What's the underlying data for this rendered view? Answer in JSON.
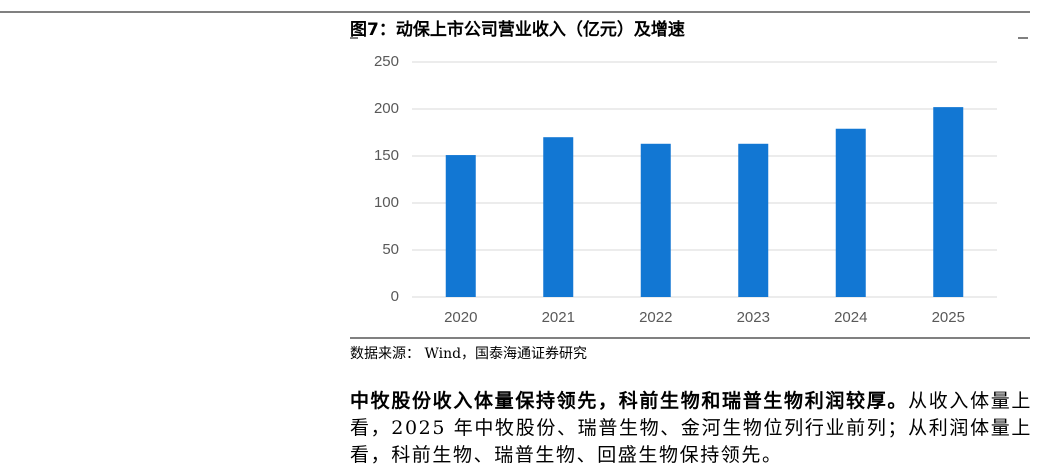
{
  "figure_title": "图7：动保上市公司营业收入（亿元）及增速",
  "chart_data": {
    "type": "bar",
    "categories": [
      "2020",
      "2021",
      "2022",
      "2023",
      "2024",
      "2025"
    ],
    "values": [
      151,
      170,
      163,
      163,
      179,
      202
    ],
    "color": "#1277d3",
    "ylim": [
      0,
      250
    ],
    "yticks": [
      0,
      50,
      100,
      150,
      200,
      250
    ],
    "grid": true
  },
  "source": "数据来源： Wind，国泰海通证券研究",
  "paragraph": {
    "bold": "中牧股份收入体量保持领先，科前生物和瑞普生物利润较厚。",
    "text": "从收入体量上看，2025 年中牧股份、瑞普生物、金河生物位列行业前列；从利润体量上看，科前生物、瑞普生物、回盛生物保持领先。"
  }
}
